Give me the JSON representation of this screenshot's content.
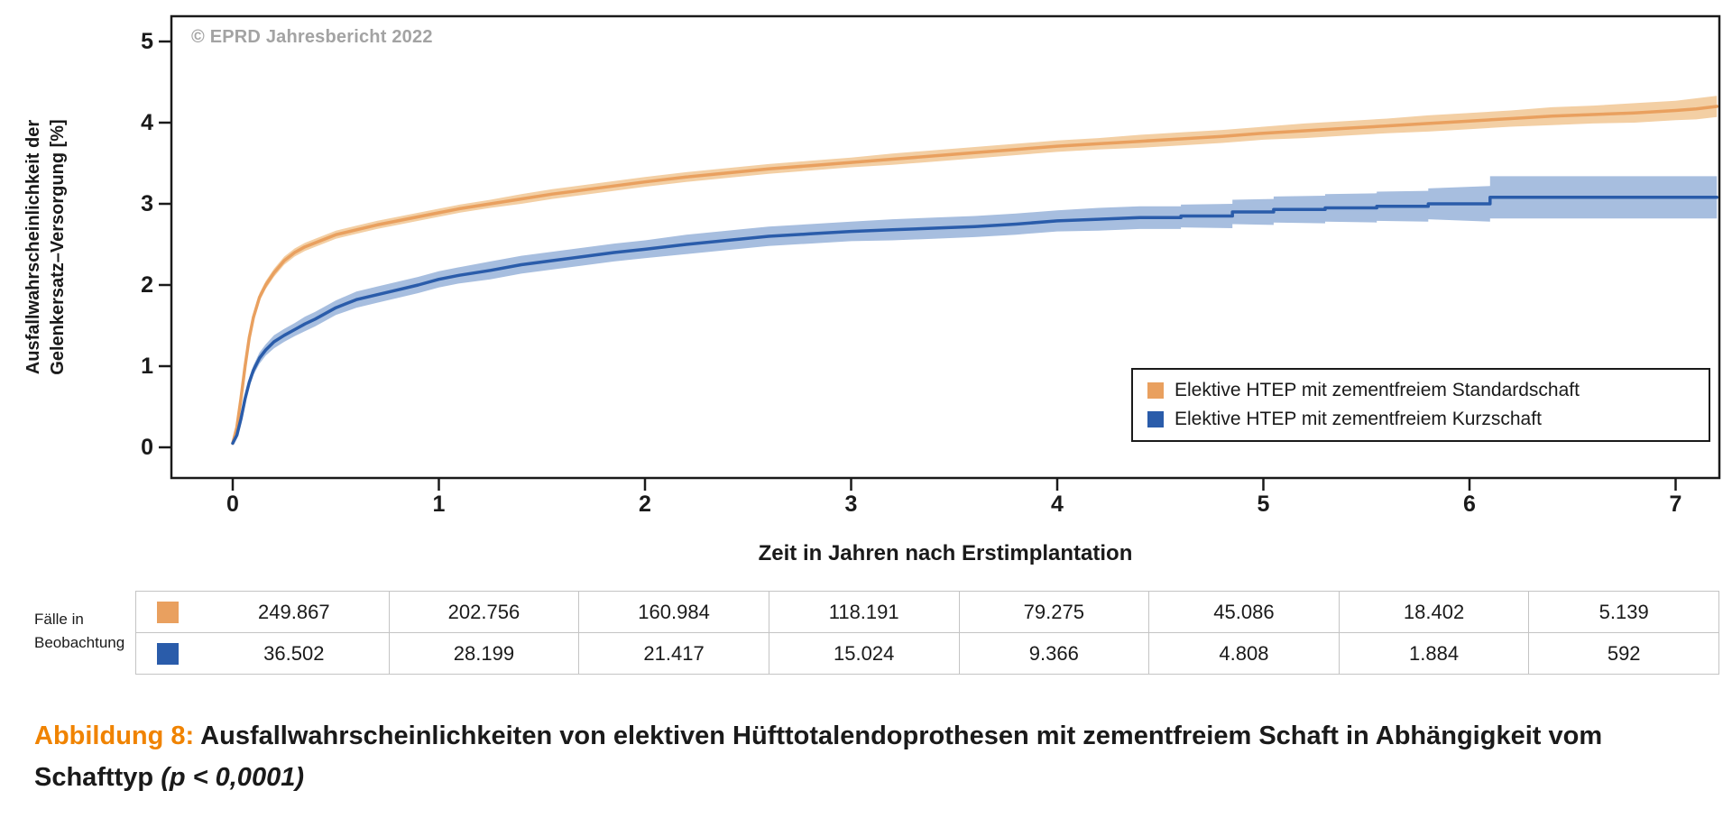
{
  "chart_data": {
    "type": "line",
    "title": "",
    "copyright": "© EPRD Jahresbericht 2022",
    "xlabel": "Zeit in Jahren nach Erstimplantation",
    "ylabel": "Ausfallwahrscheinlichkeit der Gelenkersatz–Versorgung [%]",
    "ylabel_lines": [
      "Ausfallwahrscheinlichkeit der",
      "Gelenkersatz–Versorgung [%]"
    ],
    "xlim": [
      -0.3,
      7.25
    ],
    "ylim": [
      0,
      5
    ],
    "xticks": [
      0,
      1,
      2,
      3,
      4,
      5,
      6,
      7
    ],
    "yticks": [
      0,
      1,
      2,
      3,
      4,
      5
    ],
    "grid": false,
    "legend_position": "bottom-right",
    "series": [
      {
        "name": "Elektive HTEP mit zementfreiem Standardschaft",
        "color": "#e9a05f",
        "band_color": "#f3cfa4",
        "x": [
          0,
          0.02,
          0.04,
          0.06,
          0.08,
          0.1,
          0.13,
          0.16,
          0.2,
          0.25,
          0.3,
          0.35,
          0.4,
          0.5,
          0.6,
          0.7,
          0.8,
          0.9,
          1.0,
          1.1,
          1.25,
          1.4,
          1.55,
          1.7,
          1.85,
          2.0,
          2.2,
          2.4,
          2.6,
          2.8,
          3.0,
          3.2,
          3.4,
          3.6,
          3.8,
          4.0,
          4.2,
          4.4,
          4.6,
          4.8,
          5.0,
          5.2,
          5.4,
          5.6,
          5.8,
          6.0,
          6.2,
          6.4,
          6.6,
          6.8,
          7.0,
          7.1,
          7.2
        ],
        "y": [
          0.05,
          0.25,
          0.6,
          1.0,
          1.35,
          1.6,
          1.85,
          2.0,
          2.15,
          2.3,
          2.4,
          2.47,
          2.52,
          2.62,
          2.68,
          2.74,
          2.79,
          2.84,
          2.89,
          2.94,
          3.0,
          3.06,
          3.12,
          3.17,
          3.22,
          3.27,
          3.33,
          3.38,
          3.43,
          3.47,
          3.51,
          3.55,
          3.59,
          3.63,
          3.67,
          3.71,
          3.74,
          3.77,
          3.8,
          3.83,
          3.87,
          3.9,
          3.93,
          3.96,
          3.99,
          4.02,
          4.05,
          4.08,
          4.1,
          4.12,
          4.15,
          4.17,
          4.2
        ],
        "ci": [
          0.02,
          0.03,
          0.04,
          0.04,
          0.05,
          0.05,
          0.05,
          0.05,
          0.05,
          0.05,
          0.05,
          0.05,
          0.05,
          0.05,
          0.05,
          0.05,
          0.05,
          0.05,
          0.05,
          0.05,
          0.05,
          0.06,
          0.06,
          0.06,
          0.06,
          0.06,
          0.06,
          0.06,
          0.06,
          0.06,
          0.06,
          0.07,
          0.07,
          0.07,
          0.07,
          0.07,
          0.07,
          0.08,
          0.08,
          0.08,
          0.08,
          0.09,
          0.09,
          0.09,
          0.1,
          0.1,
          0.1,
          0.11,
          0.11,
          0.12,
          0.12,
          0.13,
          0.13
        ]
      },
      {
        "name": "Elektive HTEP mit zementfreiem Kurzschaft",
        "color": "#2a5caa",
        "band_color": "#a7bedf",
        "x": [
          0,
          0.02,
          0.04,
          0.06,
          0.08,
          0.1,
          0.13,
          0.16,
          0.2,
          0.25,
          0.3,
          0.35,
          0.4,
          0.5,
          0.6,
          0.7,
          0.8,
          0.9,
          1.0,
          1.1,
          1.25,
          1.4,
          1.55,
          1.7,
          1.85,
          2.0,
          2.2,
          2.4,
          2.6,
          2.8,
          3.0,
          3.2,
          3.4,
          3.6,
          3.8,
          4.0,
          4.2,
          4.4,
          4.6,
          4.6,
          4.85,
          4.85,
          5.05,
          5.05,
          5.3,
          5.3,
          5.55,
          5.55,
          5.8,
          5.8,
          6.1,
          6.1,
          7.2
        ],
        "y": [
          0.05,
          0.15,
          0.35,
          0.6,
          0.8,
          0.95,
          1.1,
          1.2,
          1.3,
          1.38,
          1.45,
          1.52,
          1.58,
          1.72,
          1.82,
          1.88,
          1.94,
          2.0,
          2.07,
          2.12,
          2.18,
          2.25,
          2.3,
          2.35,
          2.4,
          2.44,
          2.5,
          2.55,
          2.6,
          2.63,
          2.66,
          2.68,
          2.7,
          2.72,
          2.75,
          2.79,
          2.81,
          2.83,
          2.83,
          2.85,
          2.85,
          2.9,
          2.9,
          2.93,
          2.93,
          2.95,
          2.95,
          2.97,
          2.97,
          3.0,
          3.0,
          3.08,
          3.08
        ],
        "ci": [
          0.02,
          0.03,
          0.04,
          0.05,
          0.06,
          0.06,
          0.07,
          0.07,
          0.08,
          0.08,
          0.08,
          0.09,
          0.09,
          0.09,
          0.1,
          0.1,
          0.1,
          0.1,
          0.1,
          0.1,
          0.11,
          0.11,
          0.11,
          0.11,
          0.11,
          0.11,
          0.12,
          0.12,
          0.12,
          0.12,
          0.12,
          0.13,
          0.13,
          0.13,
          0.13,
          0.13,
          0.14,
          0.14,
          0.14,
          0.14,
          0.15,
          0.15,
          0.16,
          0.16,
          0.17,
          0.17,
          0.18,
          0.18,
          0.19,
          0.19,
          0.22,
          0.26,
          0.26
        ]
      }
    ]
  },
  "risk_table": {
    "label_lines": [
      "Fälle in",
      "Beobachtung"
    ],
    "rows": [
      {
        "series": "Elektive HTEP mit zementfreiem Standardschaft",
        "color": "#e9a05f",
        "values": [
          "249.867",
          "202.756",
          "160.984",
          "118.191",
          "79.275",
          "45.086",
          "18.402",
          "5.139"
        ]
      },
      {
        "series": "Elektive HTEP mit zementfreiem Kurzschaft",
        "color": "#2a5caa",
        "values": [
          "36.502",
          "28.199",
          "21.417",
          "15.024",
          "9.366",
          "4.808",
          "1.884",
          "592"
        ]
      }
    ]
  },
  "caption": {
    "prefix": "Abbildung 8:",
    "text": "Ausfallwahrscheinlichkeiten von elektiven Hüfttotalendoprothesen mit zementfreiem Schaft in Abhängigkeit vom Schafttyp",
    "stat": "(p < 0,0001)"
  }
}
